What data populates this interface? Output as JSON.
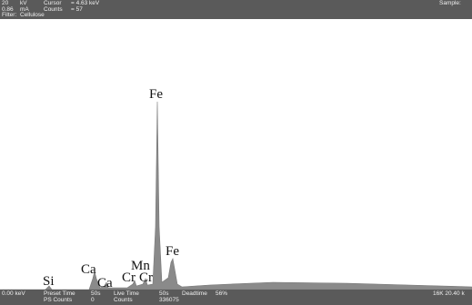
{
  "header": {
    "rows": [
      [
        "20",
        "kV",
        "Cursor",
        "= 4.63 keV"
      ],
      [
        "0.86",
        "mA",
        "Counts",
        "= 57"
      ],
      [
        "Filter:",
        "Cellulose"
      ]
    ],
    "sample": "Sample:"
  },
  "footer": {
    "rows": [
      [
        "0.00 keV",
        "Preset Time",
        "50s",
        "Live Time",
        "50s",
        "Deadtime",
        "56%"
      ],
      [
        "PS Counts",
        "0",
        "Counts",
        "336075"
      ]
    ],
    "right": "16K  20.40 k"
  },
  "peaks": [
    "Si",
    "Ca",
    "Ca",
    "Cr",
    "Cr",
    "Mn",
    "Fe",
    "Fe"
  ]
}
